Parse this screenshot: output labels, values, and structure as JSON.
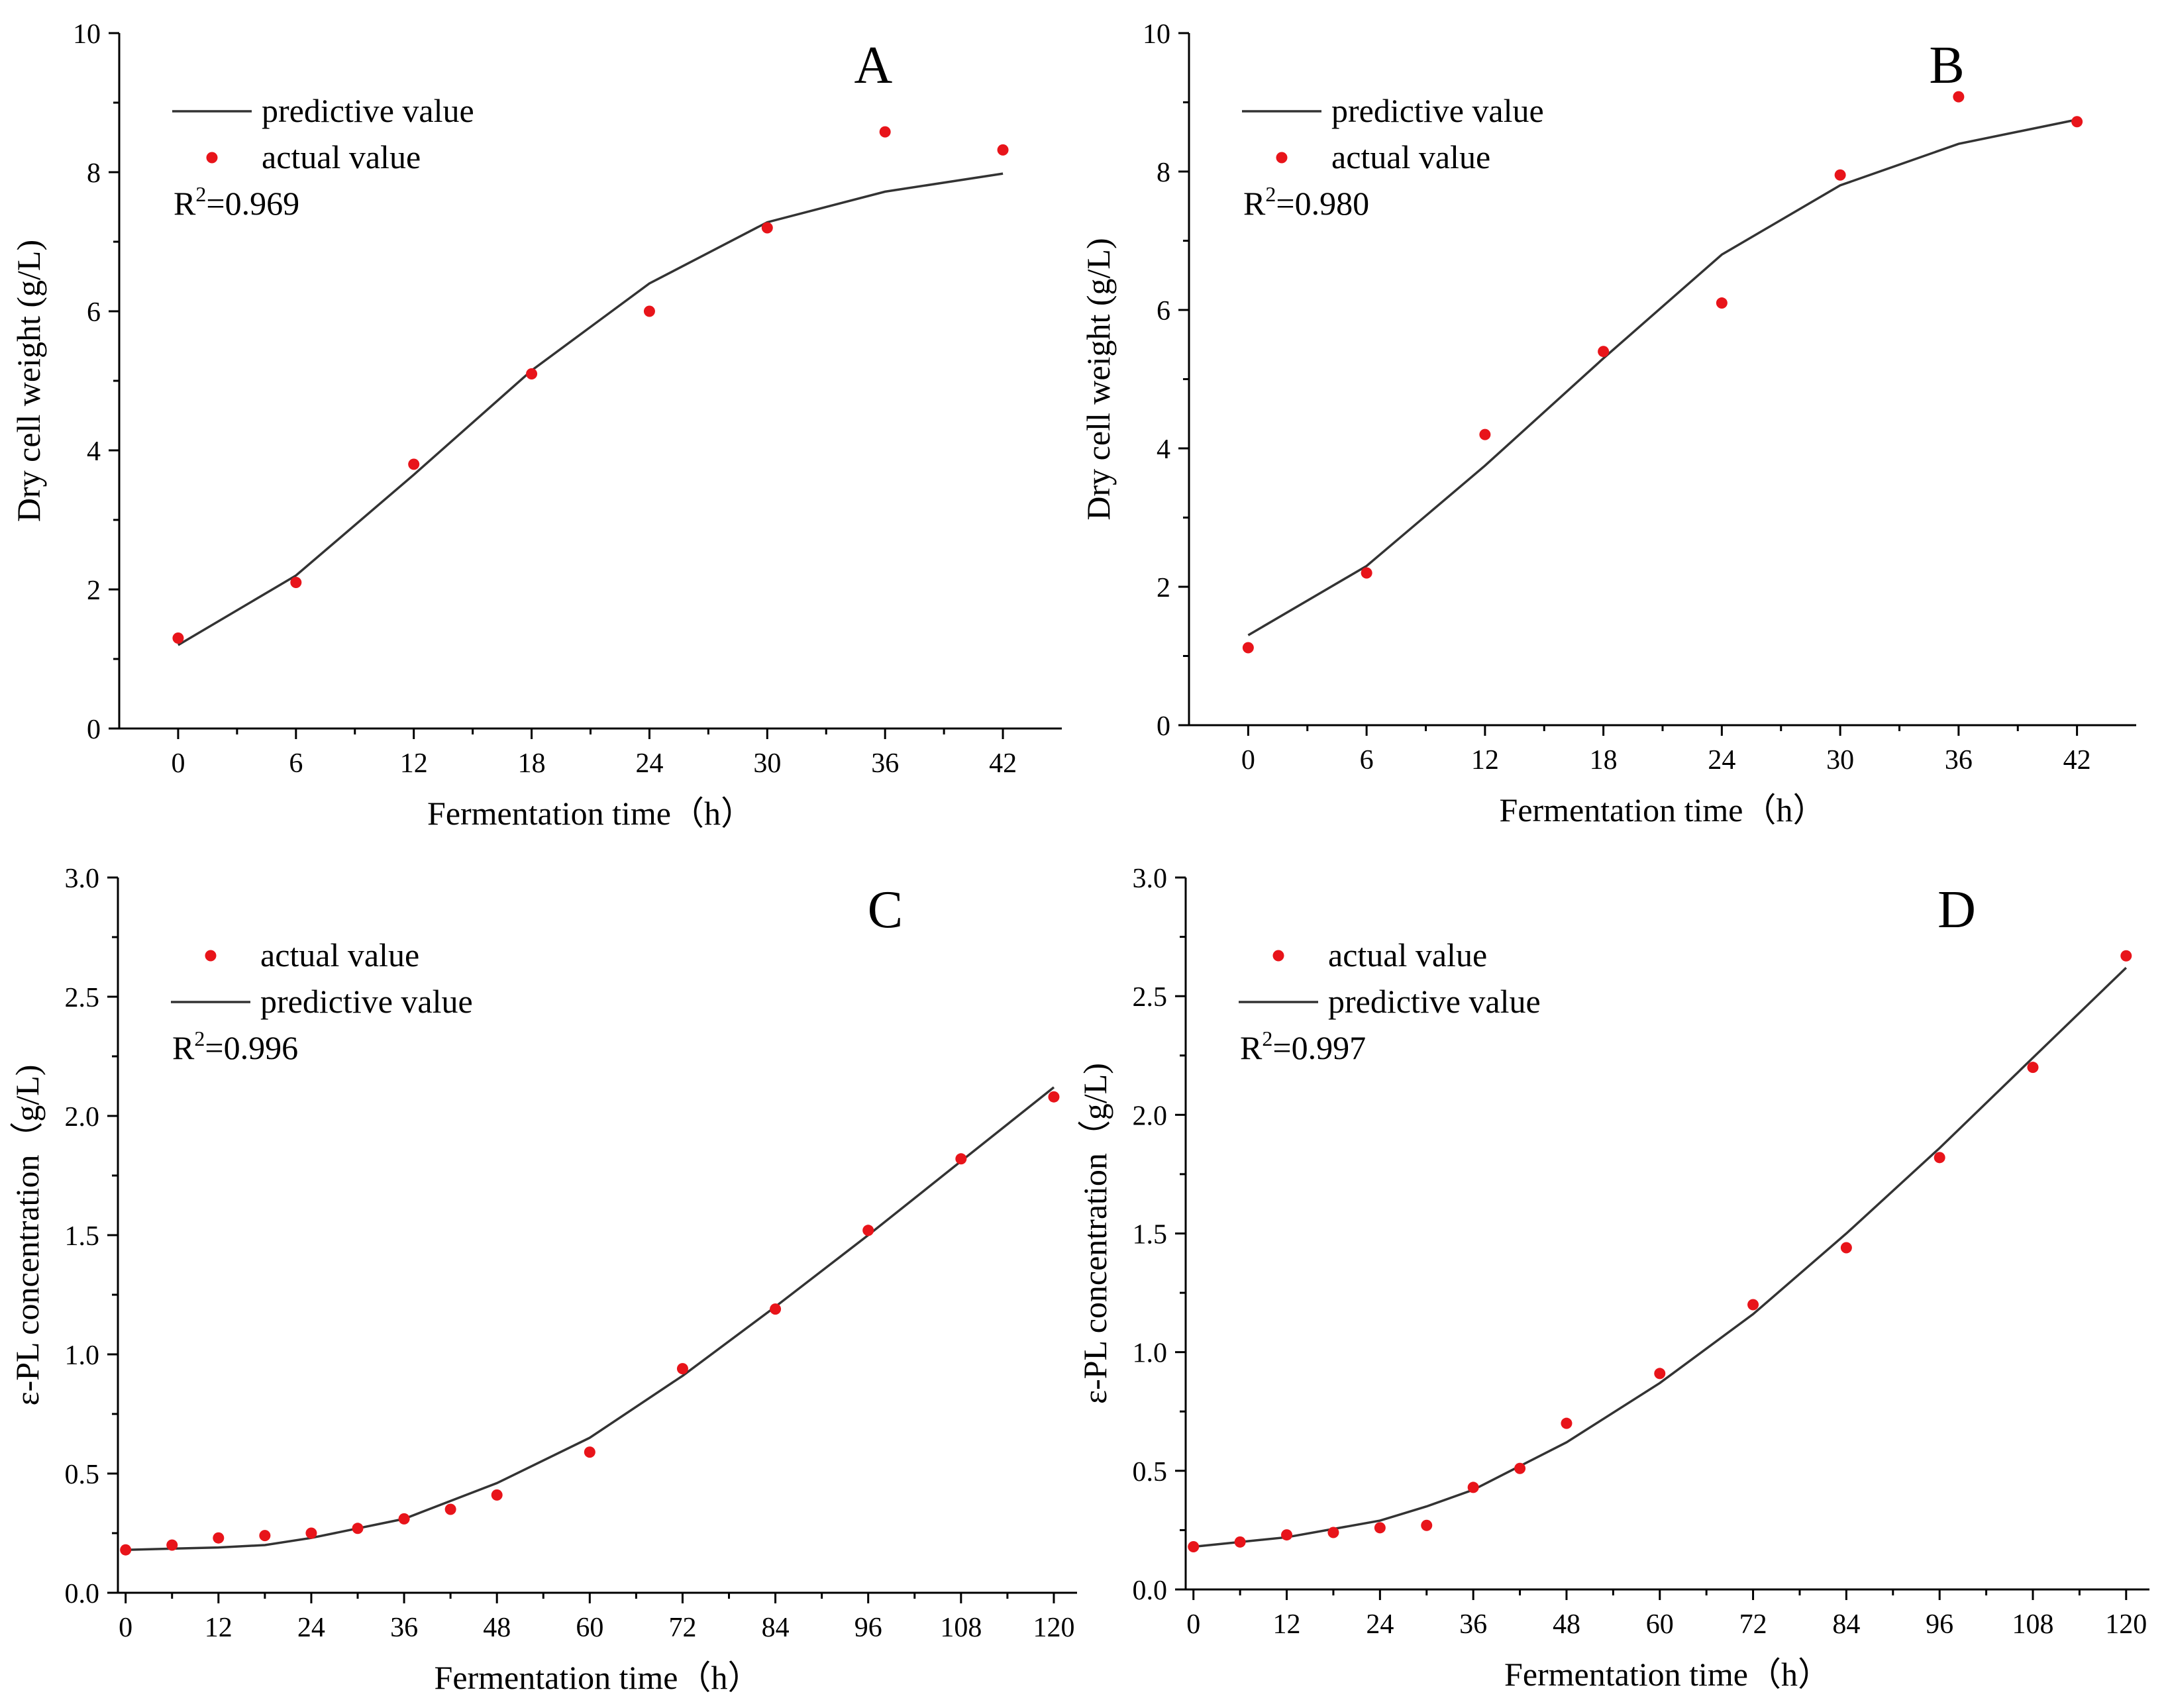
{
  "figure": {
    "panels": [
      "A",
      "B",
      "C",
      "D"
    ]
  },
  "colors": {
    "actual_point": "#e8141a",
    "predictive_line": "#333333",
    "axis": "#000000"
  },
  "chart_data": [
    {
      "type": "line",
      "panel": "A",
      "xlabel": "Fermentation time（h）",
      "ylabel": "Dry cell weight (g/L)",
      "xlim": [
        -3,
        45
      ],
      "ylim": [
        0,
        10
      ],
      "xticks": [
        0,
        6,
        12,
        18,
        24,
        30,
        36,
        42
      ],
      "yticks": [
        0,
        2,
        4,
        6,
        8,
        10
      ],
      "ytick_labels": [
        "0",
        "2",
        "4",
        "6",
        "8",
        "10"
      ],
      "legend_order": [
        "predictive",
        "actual"
      ],
      "legend_placement": "top-left",
      "r2": "0.969",
      "series": [
        {
          "name": "predictive value",
          "kind": "line",
          "x": [
            0,
            6,
            12,
            18,
            24,
            30,
            36,
            42
          ],
          "y": [
            1.2,
            2.2,
            3.65,
            5.15,
            6.4,
            7.28,
            7.72,
            7.98
          ]
        },
        {
          "name": "actual value",
          "kind": "scatter",
          "x": [
            0,
            6,
            12,
            18,
            24,
            30,
            36,
            42
          ],
          "y": [
            1.3,
            2.1,
            3.8,
            5.1,
            6.0,
            7.2,
            8.58,
            8.32
          ]
        }
      ]
    },
    {
      "type": "line",
      "panel": "B",
      "xlabel": "Fermentation time（h）",
      "ylabel": "Dry cell weight (g/L)",
      "xlim": [
        -3,
        45
      ],
      "ylim": [
        0,
        10
      ],
      "xticks": [
        0,
        6,
        12,
        18,
        24,
        30,
        36,
        42
      ],
      "yticks": [
        0,
        2,
        4,
        6,
        8,
        10
      ],
      "ytick_labels": [
        "0",
        "2",
        "4",
        "6",
        "8",
        "10"
      ],
      "legend_order": [
        "predictive",
        "actual"
      ],
      "legend_placement": "top-left",
      "r2": "0.980",
      "series": [
        {
          "name": "predictive value",
          "kind": "line",
          "x": [
            0,
            6,
            12,
            18,
            24,
            30,
            36,
            42
          ],
          "y": [
            1.3,
            2.3,
            3.75,
            5.3,
            6.8,
            7.8,
            8.4,
            8.75
          ]
        },
        {
          "name": "actual value",
          "kind": "scatter",
          "x": [
            0,
            6,
            12,
            18,
            24,
            30,
            36,
            42
          ],
          "y": [
            1.12,
            2.2,
            4.2,
            5.4,
            6.1,
            7.95,
            9.08,
            8.72
          ]
        }
      ]
    },
    {
      "type": "line",
      "panel": "C",
      "xlabel": "Fermentation time（h）",
      "ylabel": "ε-PL concentration（g/L)",
      "xlim": [
        -1,
        123
      ],
      "ylim": [
        0,
        3.0
      ],
      "xticks": [
        0,
        12,
        24,
        36,
        48,
        60,
        72,
        84,
        96,
        108,
        120
      ],
      "yticks": [
        0,
        0.5,
        1.0,
        1.5,
        2.0,
        2.5,
        3.0
      ],
      "ytick_labels": [
        "0.0",
        "0.5",
        "1.0",
        "1.5",
        "2.0",
        "2.5",
        "3.0"
      ],
      "legend_order": [
        "actual",
        "predictive"
      ],
      "legend_placement": "top-left",
      "r2": "0.996",
      "series": [
        {
          "name": "predictive value",
          "kind": "line",
          "x": [
            0,
            12,
            18,
            24,
            36,
            48,
            60,
            72,
            84,
            96,
            108,
            120
          ],
          "y": [
            0.18,
            0.19,
            0.2,
            0.23,
            0.31,
            0.46,
            0.65,
            0.91,
            1.2,
            1.5,
            1.81,
            2.12
          ]
        },
        {
          "name": "actual value",
          "kind": "scatter",
          "x": [
            0,
            6,
            12,
            18,
            24,
            30,
            36,
            42,
            48,
            60,
            72,
            84,
            96,
            108,
            120
          ],
          "y": [
            0.18,
            0.2,
            0.23,
            0.24,
            0.25,
            0.27,
            0.31,
            0.35,
            0.41,
            0.59,
            0.94,
            1.19,
            1.52,
            1.82,
            2.08
          ]
        }
      ]
    },
    {
      "type": "line",
      "panel": "D",
      "xlabel": "Fermentation time（h）",
      "ylabel": "ε-PL concentration（g/L)",
      "xlim": [
        -1,
        123
      ],
      "ylim": [
        0,
        3.0
      ],
      "xticks": [
        0,
        12,
        24,
        36,
        48,
        60,
        72,
        84,
        96,
        108,
        120
      ],
      "yticks": [
        0,
        0.5,
        1.0,
        1.5,
        2.0,
        2.5,
        3.0
      ],
      "ytick_labels": [
        "0.0",
        "0.5",
        "1.0",
        "1.5",
        "2.0",
        "2.5",
        "3.0"
      ],
      "legend_order": [
        "actual",
        "predictive"
      ],
      "legend_placement": "top-left",
      "r2": "0.997",
      "series": [
        {
          "name": "predictive value",
          "kind": "line",
          "x": [
            0,
            12,
            24,
            30,
            36,
            48,
            60,
            72,
            84,
            96,
            108,
            120
          ],
          "y": [
            0.18,
            0.22,
            0.29,
            0.35,
            0.42,
            0.62,
            0.87,
            1.16,
            1.5,
            1.86,
            2.24,
            2.62
          ]
        },
        {
          "name": "actual value",
          "kind": "scatter",
          "x": [
            0,
            6,
            12,
            18,
            24,
            30,
            36,
            42,
            48,
            60,
            72,
            84,
            96,
            108,
            120
          ],
          "y": [
            0.18,
            0.2,
            0.23,
            0.24,
            0.26,
            0.27,
            0.43,
            0.51,
            0.7,
            0.91,
            1.2,
            1.44,
            1.82,
            2.2,
            2.67
          ]
        }
      ]
    }
  ]
}
